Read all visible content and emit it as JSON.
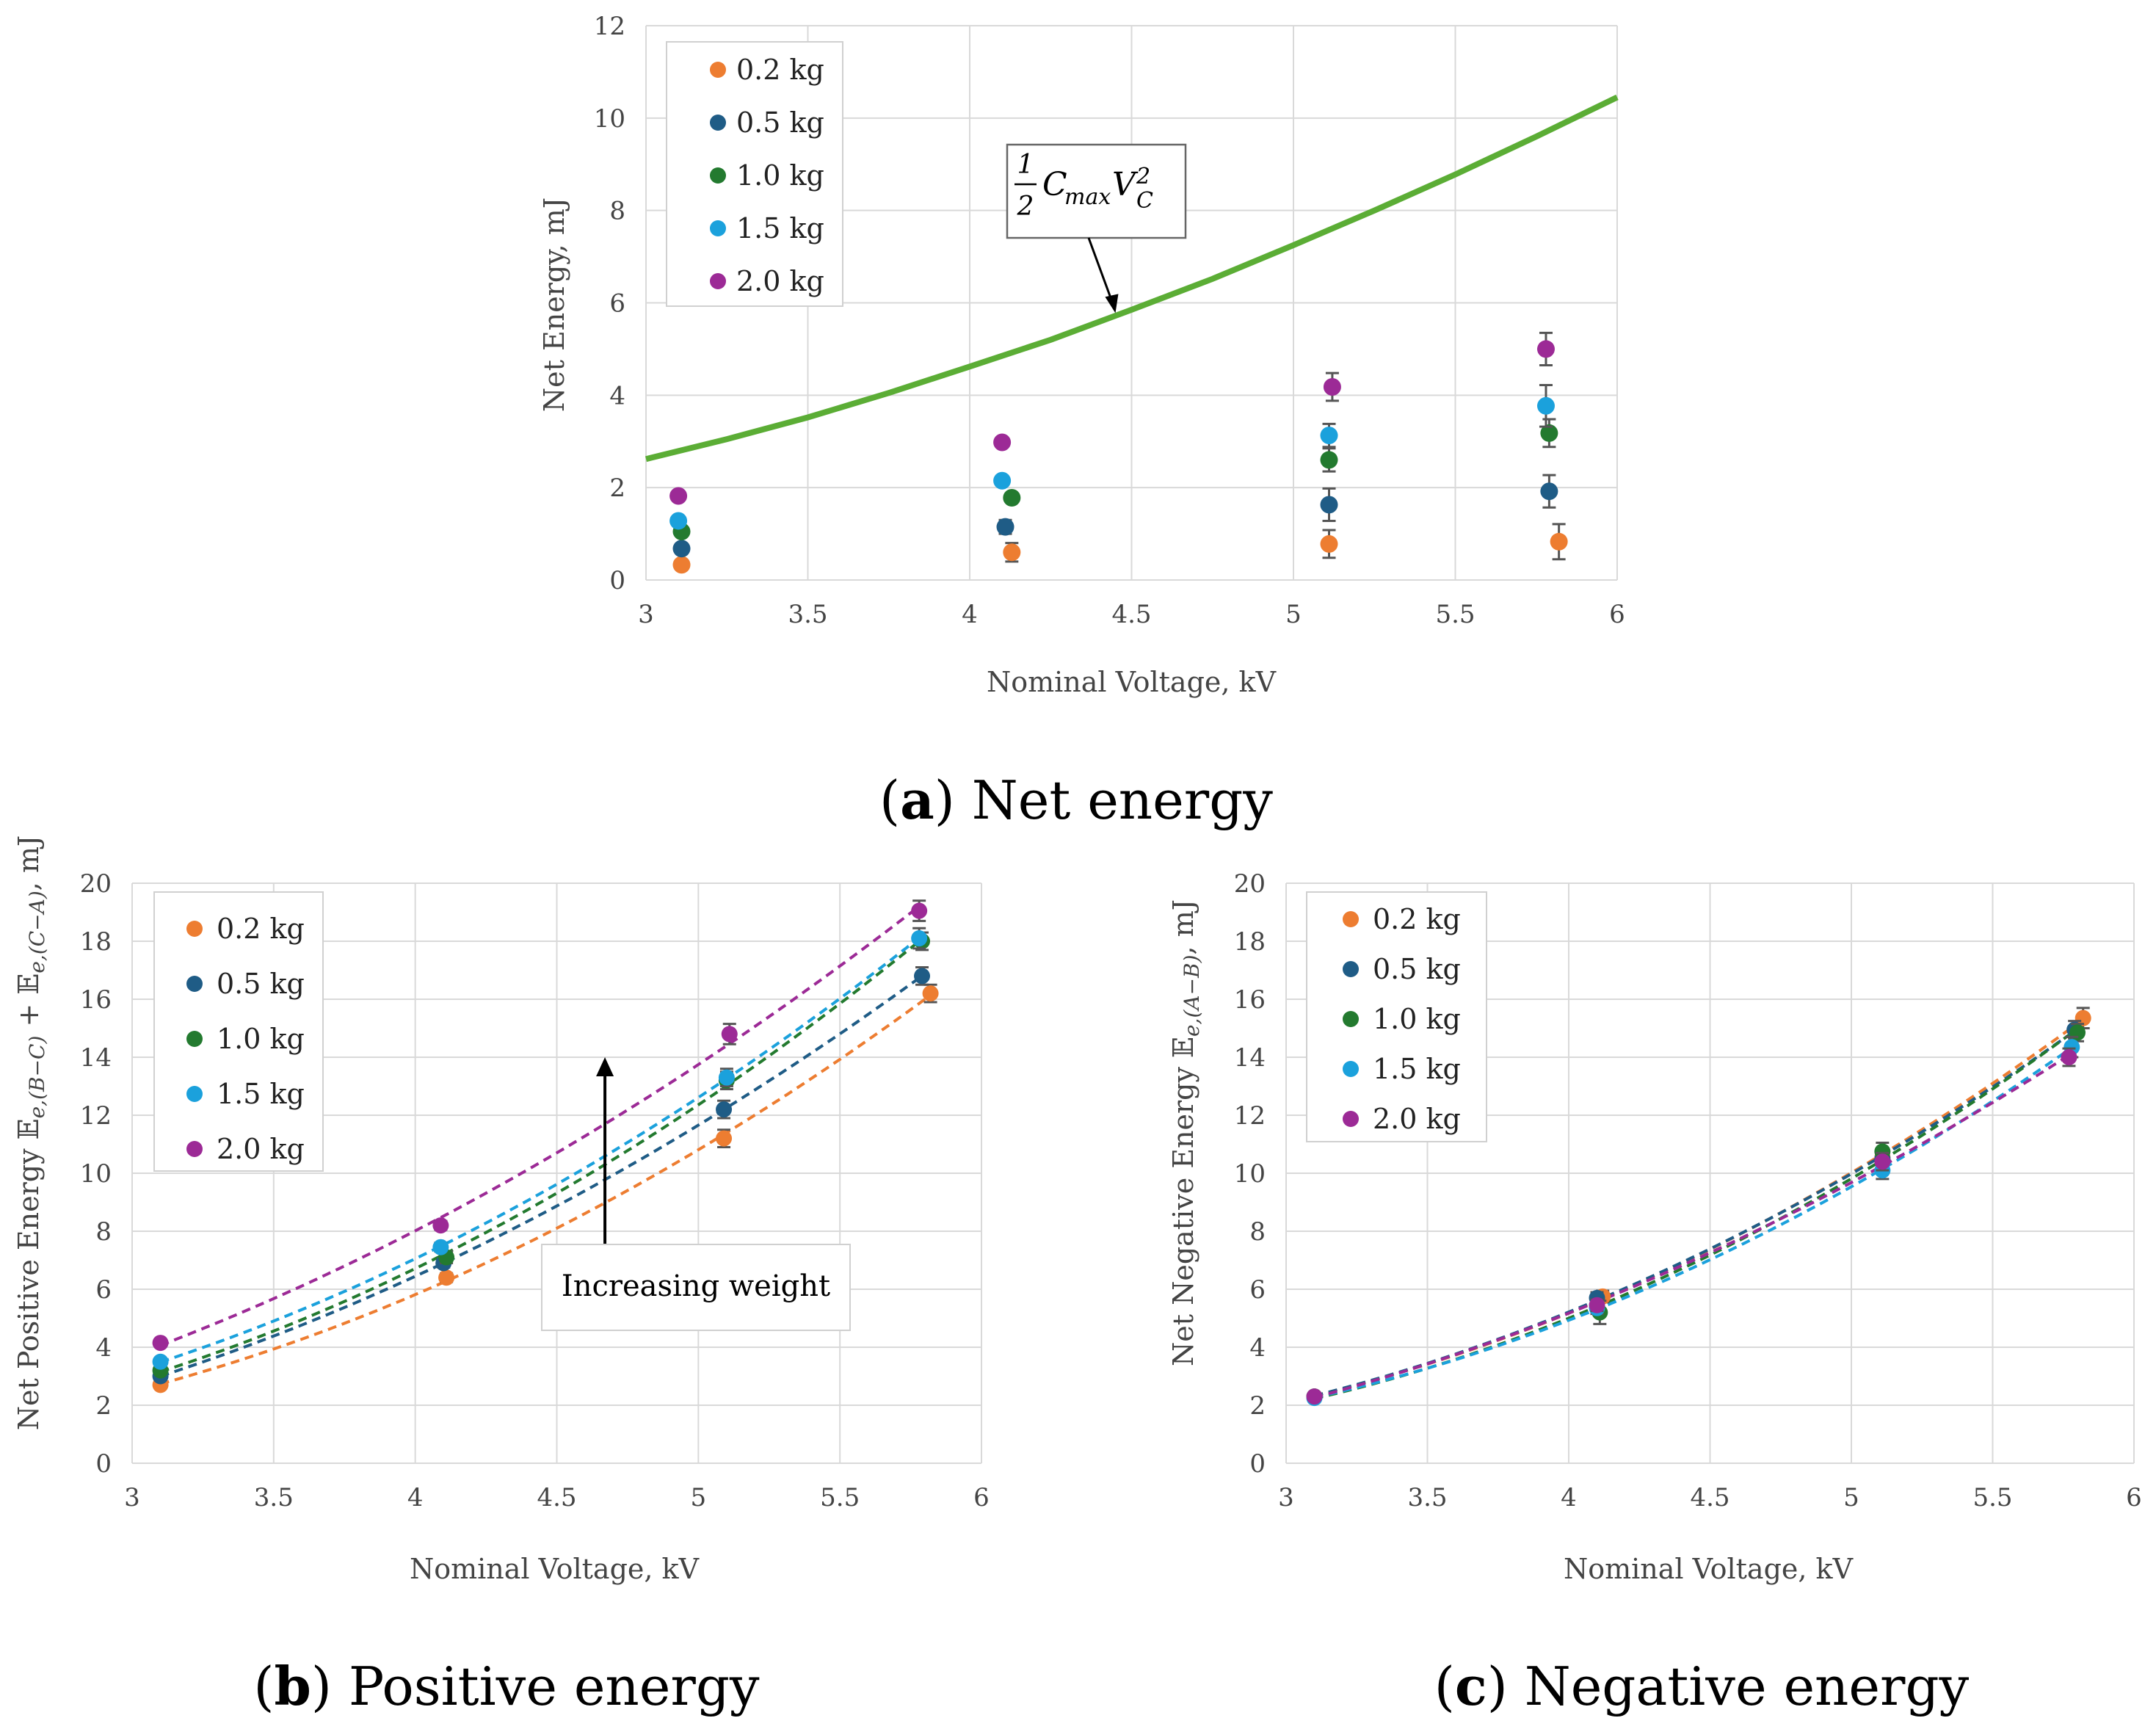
{
  "colors": {
    "0.2 kg": "#ED7D31",
    "0.5 kg": "#1F5C86",
    "1.0 kg": "#237A2F",
    "1.5 kg": "#1BA1DC",
    "2.0 kg": "#9C2A96",
    "theory": "#5BAD35",
    "grid": "#D9D9D9",
    "errorbar": "#555555"
  },
  "chart_data": [
    {
      "id": "a",
      "type": "scatter",
      "caption_label": "a",
      "caption_text": "Net energy",
      "xlabel": "Nominal Voltage, kV",
      "ylabel": "Net Energy, mJ",
      "xlim": [
        3,
        6
      ],
      "ylim": [
        0,
        12
      ],
      "xticks": [
        3,
        3.5,
        4,
        4.5,
        5,
        5.5,
        6
      ],
      "xtick_labels": [
        "3",
        "3.5",
        "4",
        "4.5",
        "5",
        "5.5",
        "6"
      ],
      "yticks": [
        0,
        2,
        4,
        6,
        8,
        10,
        12
      ],
      "ytick_labels": [
        "0",
        "2",
        "4",
        "6",
        "8",
        "10",
        "12"
      ],
      "grid": true,
      "legend": "top-left",
      "series": [
        {
          "name": "0.2 kg",
          "x": [
            3.11,
            4.13,
            5.11,
            5.82
          ],
          "y": [
            0.33,
            0.6,
            0.78,
            0.83
          ],
          "err": [
            0.05,
            0.2,
            0.3,
            0.38
          ]
        },
        {
          "name": "0.5 kg",
          "x": [
            3.11,
            4.11,
            5.11,
            5.79
          ],
          "y": [
            0.68,
            1.15,
            1.63,
            1.92
          ],
          "err": [
            0.05,
            0.15,
            0.35,
            0.35
          ]
        },
        {
          "name": "1.0 kg",
          "x": [
            3.11,
            4.13,
            5.11,
            5.79
          ],
          "y": [
            1.05,
            1.78,
            2.6,
            3.18
          ],
          "err": [
            0.05,
            0.1,
            0.25,
            0.3
          ]
        },
        {
          "name": "1.5 kg",
          "x": [
            3.1,
            4.1,
            5.11,
            5.78
          ],
          "y": [
            1.28,
            2.15,
            3.13,
            3.77
          ],
          "err": [
            0.05,
            0.1,
            0.25,
            0.45
          ]
        },
        {
          "name": "2.0 kg",
          "x": [
            3.1,
            4.1,
            5.12,
            5.78
          ],
          "y": [
            1.82,
            2.98,
            4.18,
            5.0
          ],
          "err": [
            0.05,
            0.1,
            0.3,
            0.35
          ]
        }
      ],
      "theory_curve": {
        "name": "1/2 Cmax Vc^2",
        "x": [
          3,
          3.25,
          3.5,
          3.75,
          4,
          4.25,
          4.5,
          4.75,
          5,
          5.25,
          5.5,
          5.75,
          6
        ],
        "y": [
          2.62,
          3.05,
          3.52,
          4.05,
          4.62,
          5.2,
          5.85,
          6.52,
          7.25,
          8.0,
          8.78,
          9.6,
          10.45
        ]
      },
      "annotation": {
        "frac": "1",
        "denom": "2",
        "C": "C",
        "max": "max",
        "V": "V",
        "sub": "C",
        "sup": "2",
        "target_x": 4.45,
        "target_y": 5.78
      }
    },
    {
      "id": "b",
      "type": "scatter",
      "caption_label": "b",
      "caption_text": "Positive energy",
      "xlabel": "Nominal Voltage, kV",
      "ylabel_prefix": "Net Positive Energy ",
      "ylabel_E1": "𝔼",
      "ylabel_sub1": "e,(B−C)",
      "ylabel_mid": " + ",
      "ylabel_E2": "𝔼",
      "ylabel_sub2": "e,(C−A)",
      "ylabel_suffix": ", mJ",
      "xlim": [
        3,
        6
      ],
      "ylim": [
        0,
        20
      ],
      "xticks": [
        3,
        3.5,
        4,
        4.5,
        5,
        5.5,
        6
      ],
      "xtick_labels": [
        "3",
        "3.5",
        "4",
        "4.5",
        "5",
        "5.5",
        "6"
      ],
      "yticks": [
        0,
        2,
        4,
        6,
        8,
        10,
        12,
        14,
        16,
        18,
        20
      ],
      "ytick_labels": [
        "0",
        "2",
        "4",
        "6",
        "8",
        "10",
        "12",
        "14",
        "16",
        "18",
        "20"
      ],
      "grid": true,
      "legend": "top-left",
      "series": [
        {
          "name": "0.2 kg",
          "x": [
            3.1,
            4.11,
            5.09,
            5.82
          ],
          "y": [
            2.7,
            6.4,
            11.2,
            16.2
          ],
          "err": [
            0.1,
            0.15,
            0.3,
            0.3
          ]
        },
        {
          "name": "0.5 kg",
          "x": [
            3.1,
            4.1,
            5.09,
            5.79
          ],
          "y": [
            3.0,
            6.9,
            12.2,
            16.8
          ],
          "err": [
            0.1,
            0.15,
            0.3,
            0.3
          ]
        },
        {
          "name": "1.0 kg",
          "x": [
            3.1,
            4.11,
            5.1,
            5.79
          ],
          "y": [
            3.2,
            7.1,
            13.2,
            18.0
          ],
          "err": [
            0.1,
            0.2,
            0.3,
            0.3
          ]
        },
        {
          "name": "1.5 kg",
          "x": [
            3.1,
            4.09,
            5.1,
            5.78
          ],
          "y": [
            3.5,
            7.45,
            13.3,
            18.1
          ],
          "err": [
            0.1,
            0.15,
            0.3,
            0.35
          ]
        },
        {
          "name": "2.0 kg",
          "x": [
            3.1,
            4.09,
            5.11,
            5.78
          ],
          "y": [
            4.15,
            8.2,
            14.8,
            19.05
          ],
          "err": [
            0.1,
            0.15,
            0.35,
            0.35
          ]
        }
      ],
      "annotation": {
        "text": "Increasing weight",
        "arrow_x": 4.67,
        "arrow_from_y": 7.5,
        "arrow_to_y": 14.0
      }
    },
    {
      "id": "c",
      "type": "scatter",
      "caption_label": "c",
      "caption_text": "Negative energy",
      "xlabel": "Nominal Voltage, kV",
      "ylabel_prefix": "Net Negative Energy ",
      "ylabel_E1": "𝔼",
      "ylabel_sub1": "e,(A−B)",
      "ylabel_suffix": ", mJ",
      "xlim": [
        3,
        6
      ],
      "ylim": [
        0,
        20
      ],
      "xticks": [
        3,
        3.5,
        4,
        4.5,
        5,
        5.5,
        6
      ],
      "xtick_labels": [
        "3",
        "3.5",
        "4",
        "4.5",
        "5",
        "5.5",
        "6"
      ],
      "yticks": [
        0,
        2,
        4,
        6,
        8,
        10,
        12,
        14,
        16,
        18,
        20
      ],
      "ytick_labels": [
        "0",
        "2",
        "4",
        "6",
        "8",
        "10",
        "12",
        "14",
        "16",
        "18",
        "20"
      ],
      "grid": true,
      "legend": "top-left",
      "series": [
        {
          "name": "0.2 kg",
          "x": [
            3.1,
            4.12,
            5.11,
            5.82
          ],
          "y": [
            2.3,
            5.75,
            10.55,
            15.35
          ],
          "err": [
            0.1,
            0.2,
            0.3,
            0.35
          ]
        },
        {
          "name": "0.5 kg",
          "x": [
            3.1,
            4.1,
            5.11,
            5.79
          ],
          "y": [
            2.3,
            5.7,
            10.5,
            14.95
          ],
          "err": [
            0.1,
            0.2,
            0.3,
            0.3
          ]
        },
        {
          "name": "1.0 kg",
          "x": [
            3.1,
            4.11,
            5.11,
            5.8
          ],
          "y": [
            2.3,
            5.2,
            10.75,
            14.85
          ],
          "err": [
            0.1,
            0.4,
            0.3,
            0.3
          ]
        },
        {
          "name": "1.5 kg",
          "x": [
            3.1,
            4.1,
            5.11,
            5.78
          ],
          "y": [
            2.25,
            5.35,
            10.1,
            14.35
          ],
          "err": [
            0.1,
            0.2,
            0.3,
            0.35
          ]
        },
        {
          "name": "2.0 kg",
          "x": [
            3.1,
            4.1,
            5.11,
            5.77
          ],
          "y": [
            2.3,
            5.45,
            10.4,
            14.0
          ],
          "err": [
            0.1,
            0.2,
            0.3,
            0.3
          ]
        }
      ]
    }
  ]
}
